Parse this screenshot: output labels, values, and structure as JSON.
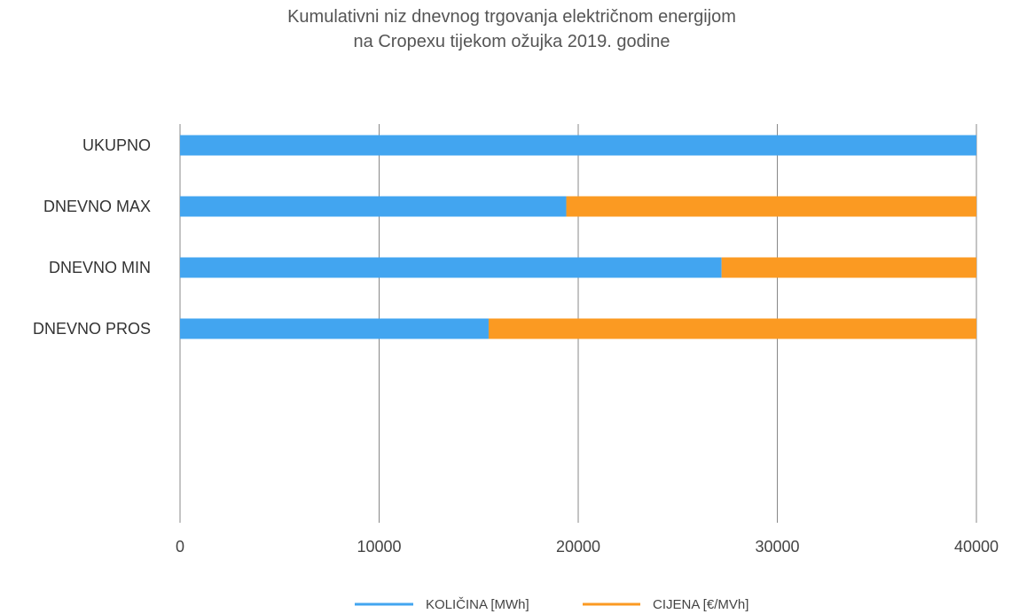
{
  "chart_data": {
    "type": "bar",
    "orientation": "horizontal",
    "stacked": true,
    "title_lines": [
      "Kumulativni niz dnevnog trgovanja električnom energijom",
      "na Cropexu tijekom ožujka 2019. godine"
    ],
    "categories": [
      "UKUPNO",
      "DNEVNO MAX",
      "DNEVNO MIN",
      "DNEVNO PROS"
    ],
    "series": [
      {
        "name": "KOLIČINA [MWh]",
        "color": "#42a5f0",
        "values": [
          40000,
          19400,
          27200,
          15500
        ]
      },
      {
        "name": "CIJENA [€/MVh]",
        "color": "#fb9a22",
        "values": [
          0,
          20600,
          12800,
          24500
        ]
      }
    ],
    "xlim": [
      0,
      40000
    ],
    "xticks": [
      "0",
      "10000",
      "20000",
      "30000",
      "40000"
    ],
    "xtick_values": [
      0,
      10000,
      20000,
      30000,
      40000
    ],
    "grid": "vertical",
    "legend_position": "bottom"
  }
}
